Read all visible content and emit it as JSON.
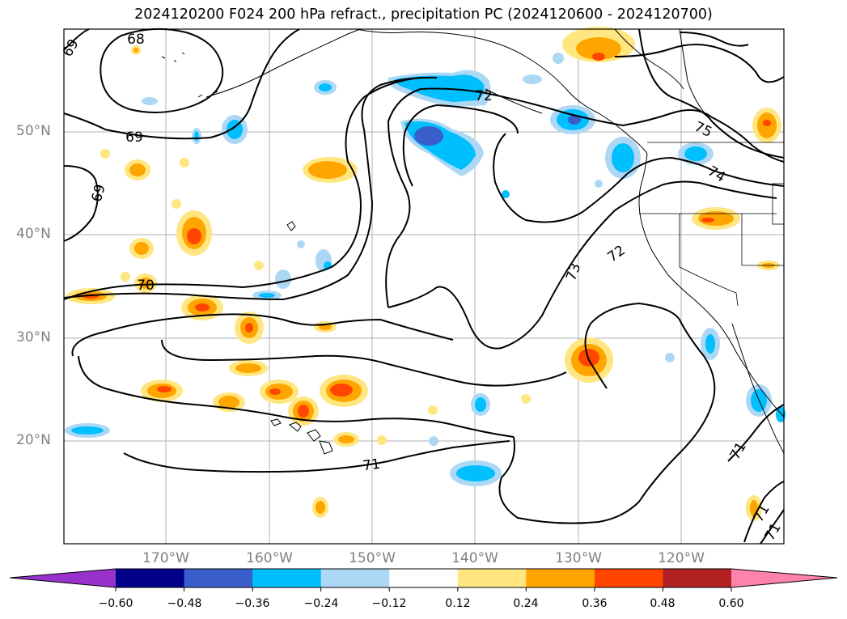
{
  "title": "2024120200 F024 200 hPa refract., precipitation PC (2024120600 - 2024120700)",
  "map": {
    "lat_labels": [
      "50°N",
      "40°N",
      "30°N",
      "20°N"
    ],
    "lon_labels": [
      "170°W",
      "160°W",
      "150°W",
      "140°W",
      "130°W",
      "120°W"
    ],
    "contour_labels": [
      "68",
      "69",
      "69",
      "69",
      "70",
      "71",
      "71",
      "71",
      "71",
      "72",
      "72",
      "73",
      "74",
      "75"
    ],
    "contour_color": "#000000"
  },
  "colorbar": {
    "ticks": [
      "−0.60",
      "−0.48",
      "−0.36",
      "−0.24",
      "−0.12",
      "0.12",
      "0.24",
      "0.36",
      "0.48",
      "0.60"
    ],
    "colors": [
      "#9932cc",
      "#00008b",
      "#3a5fcd",
      "#00bfff",
      "#add8f5",
      "#ffffff",
      "#ffe680",
      "#ffa500",
      "#ff4500",
      "#b22222",
      "#ff82ab"
    ]
  }
}
